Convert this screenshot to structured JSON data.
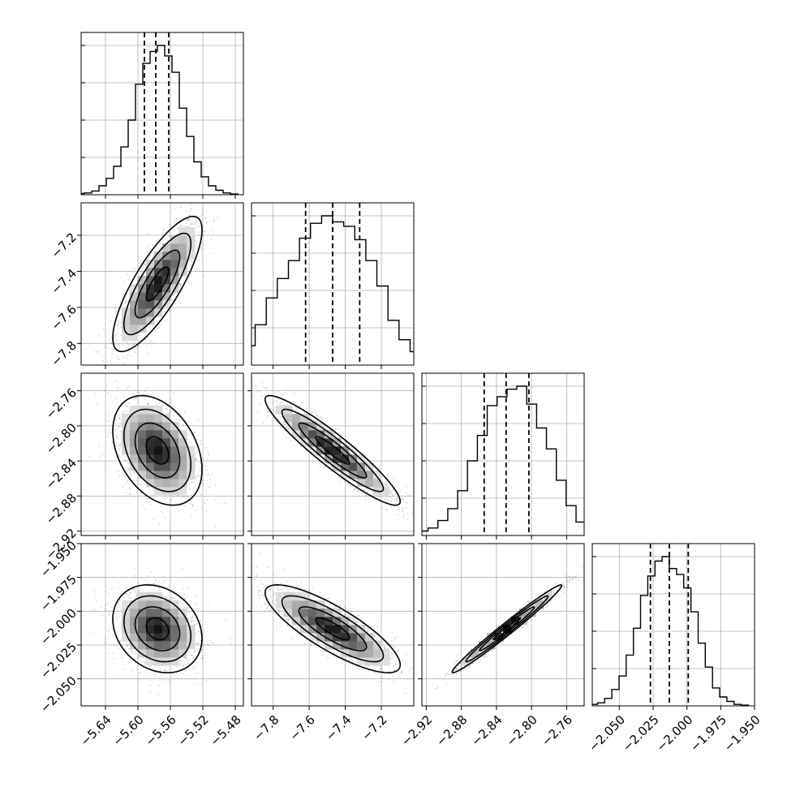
{
  "chart_data": {
    "type": "corner",
    "grid": true,
    "parameters": [
      {
        "axis_range": [
          -5.67,
          -5.47
        ],
        "ticks": [
          -5.64,
          -5.6,
          -5.56,
          -5.52,
          -5.48
        ],
        "tick_labels": [
          "−5.64",
          "−5.60",
          "−5.56",
          "−5.52",
          "−5.48"
        ],
        "mean": -5.576,
        "sigma": 0.022,
        "quantiles": [
          -5.592,
          -5.578,
          -5.562
        ],
        "hist_counts": [
          0.008,
          0.012,
          0.025,
          0.06,
          0.11,
          0.19,
          0.32,
          0.5,
          0.74,
          0.88,
          0.96,
          1.0,
          0.93,
          0.82,
          0.58,
          0.39,
          0.22,
          0.12,
          0.06,
          0.03,
          0.012,
          0.005
        ]
      },
      {
        "axis_range": [
          -7.92,
          -7.02
        ],
        "ticks": [
          -7.8,
          -7.6,
          -7.4,
          -7.2
        ],
        "tick_labels": [
          "−7.8",
          "−7.6",
          "−7.4",
          "−7.2"
        ],
        "mean": -7.47,
        "sigma": 0.15,
        "quantiles": [
          -7.62,
          -7.47,
          -7.32
        ],
        "hist_counts": [
          0.015,
          0.03,
          0.06,
          0.13,
          0.27,
          0.45,
          0.58,
          0.7,
          0.85,
          0.95,
          1.0,
          0.96,
          0.93,
          0.84,
          0.7,
          0.53,
          0.3,
          0.17,
          0.09,
          0.04,
          0.02,
          0.01
        ]
      },
      {
        "axis_range": [
          -2.925,
          -2.74
        ],
        "ticks": [
          -2.92,
          -2.88,
          -2.84,
          -2.8,
          -2.76
        ],
        "tick_labels": [
          "−2.92",
          "−2.88",
          "−2.84",
          "−2.80",
          "−2.76"
        ],
        "mean": -2.828,
        "sigma": 0.025,
        "quantiles": [
          -2.854,
          -2.829,
          -2.803
        ],
        "hist_counts": [
          0.01,
          0.03,
          0.05,
          0.1,
          0.18,
          0.3,
          0.5,
          0.67,
          0.87,
          0.93,
          0.98,
          1.0,
          0.88,
          0.72,
          0.58,
          0.37,
          0.2,
          0.09,
          0.04,
          0.02
        ]
      },
      {
        "axis_range": [
          -2.07,
          -1.95
        ],
        "ticks": [
          -2.05,
          -2.025,
          -2.0,
          -1.975,
          -1.95
        ],
        "tick_labels": [
          "−2.050",
          "−2.025",
          "−2.000",
          "−1.975",
          "−1.950"
        ],
        "mean": -2.013,
        "sigma": 0.013,
        "quantiles": [
          -2.027,
          -2.013,
          -1.999
        ],
        "hist_counts": [
          0.01,
          0.02,
          0.05,
          0.11,
          0.2,
          0.34,
          0.52,
          0.74,
          0.87,
          0.97,
          1.0,
          0.92,
          0.88,
          0.79,
          0.63,
          0.42,
          0.26,
          0.12,
          0.06,
          0.03,
          0.01,
          0.005
        ]
      }
    ],
    "correlations": [
      [
        null,
        null,
        null,
        null
      ],
      [
        0.8,
        null,
        null,
        null
      ],
      [
        -0.35,
        -0.93,
        null,
        null
      ],
      [
        -0.22,
        -0.82,
        0.985,
        null
      ]
    ],
    "contour_levels_sigma": [
      0.5,
      1.0,
      1.5,
      2.0
    ]
  }
}
